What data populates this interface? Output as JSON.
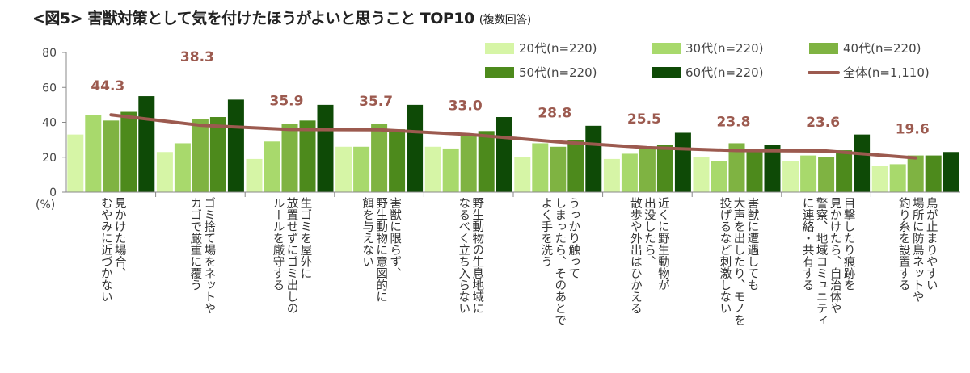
{
  "title": "<図5> 害獣対策として気を付けたほうがよいと思うこと TOP10",
  "subtitle": "(複数回答)",
  "chart_data": {
    "type": "bar",
    "ylabel": "(%)",
    "ylim": [
      0,
      80
    ],
    "yticks": [
      0,
      20,
      40,
      60,
      80
    ],
    "grid": false,
    "legend_position": "top-right",
    "categories": [
      [
        "見かけた場合、",
        "むやみに近づかない"
      ],
      [
        "ゴミ捨て場をネットや",
        "カゴで厳重に覆う"
      ],
      [
        "生ゴミを屋外に",
        "放置せずにゴミ出しの",
        "ルールを厳守する"
      ],
      [
        "害獣に限らず、",
        "野生動物に意図的に",
        "餌を与えない"
      ],
      [
        "野生動物の生息地域に",
        "なるべく立ち入らない"
      ],
      [
        "うっかり触って",
        "しまったら、そのあとで",
        "よく手を洗う"
      ],
      [
        "近くに野生動物が",
        "出没したら、",
        "散歩や外出はひかえる"
      ],
      [
        "害獣に遭遇しても",
        "大声を出したり、モノを",
        "投げるなど刺激しない"
      ],
      [
        "目撃したり痕跡を",
        "見かけたら、自治体や",
        "警察、地域コミュニティ",
        "に連絡・共有する"
      ],
      [
        "鳥が止まりやすい",
        "場所に防鳥ネットや",
        "釣り糸を設置する"
      ]
    ],
    "series": [
      {
        "name": "20代(n=220)",
        "color": "#d6f5a6",
        "values": [
          33,
          23,
          19,
          26,
          26,
          20,
          19,
          20,
          18,
          15
        ]
      },
      {
        "name": "30代(n=220)",
        "color": "#a8d96c",
        "values": [
          44,
          28,
          29,
          26,
          25,
          28,
          22,
          18,
          21,
          16
        ]
      },
      {
        "name": "40代(n=220)",
        "color": "#7fb342",
        "values": [
          41,
          42,
          39,
          39,
          32,
          26,
          25,
          28,
          20,
          21
        ]
      },
      {
        "name": "50代(n=220)",
        "color": "#4d8a1c",
        "values": [
          46,
          43,
          41,
          36,
          35,
          30,
          27,
          24,
          24,
          21
        ]
      },
      {
        "name": "60代(n=220)",
        "color": "#0e4a06",
        "values": [
          55,
          53,
          50,
          50,
          43,
          38,
          34,
          27,
          33,
          23
        ]
      },
      {
        "name": "全体(n=1,110)",
        "type": "line",
        "color": "#9c5a4f",
        "values": [
          44.3,
          38.3,
          35.9,
          35.7,
          33.0,
          28.8,
          25.5,
          23.8,
          23.6,
          19.6
        ],
        "labels": [
          "44.3",
          "38.3",
          "35.9",
          "35.7",
          "33.0",
          "28.8",
          "25.5",
          "23.8",
          "23.6",
          "19.6"
        ]
      }
    ]
  }
}
